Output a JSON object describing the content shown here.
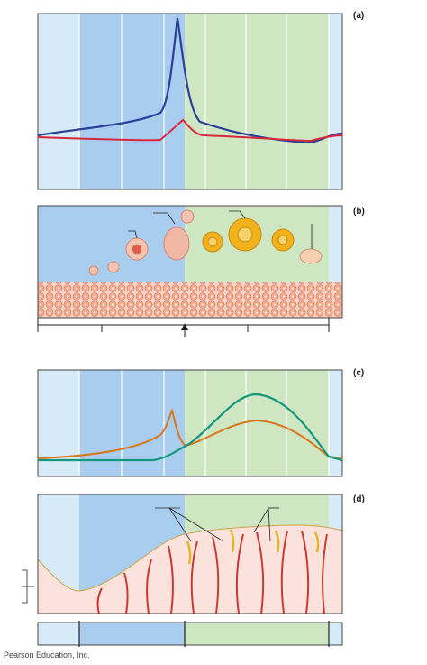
{
  "panels": {
    "a": {
      "label": "(a)"
    },
    "b": {
      "label": "(b)"
    },
    "c": {
      "label": "(c)"
    },
    "d": {
      "label": "(d)"
    }
  },
  "credit": "Pearson Education, Inc."
}
